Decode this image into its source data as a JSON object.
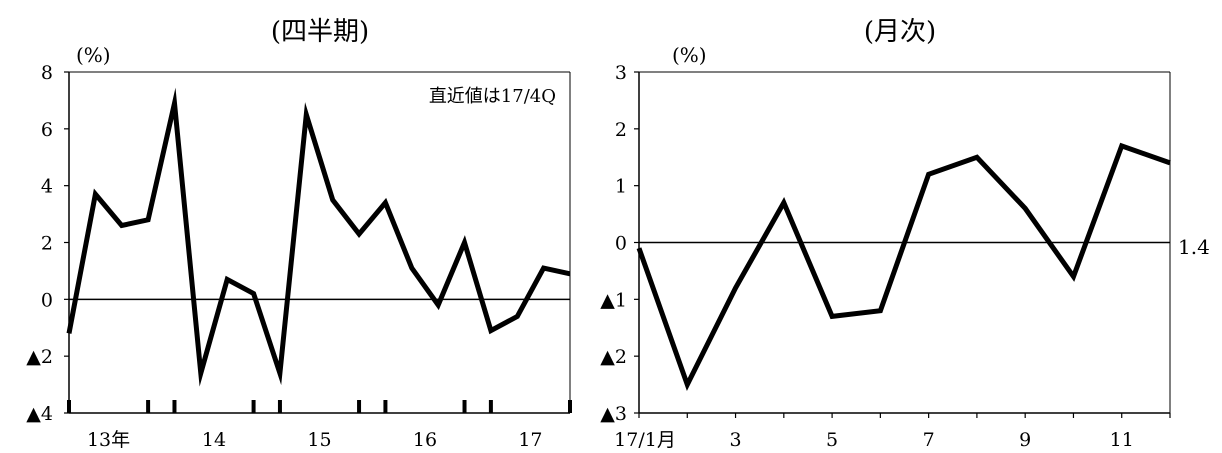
{
  "chart_data": [
    {
      "type": "line",
      "title": "(四半期)",
      "unit": "(%)",
      "annotation": "直近値は17/4Q",
      "ylim": [
        -4,
        8
      ],
      "yticks": [
        8,
        6,
        4,
        2,
        0,
        -2,
        -4
      ],
      "ytick_labels": [
        "8",
        "6",
        "4",
        "2",
        "0",
        "▲2",
        "▲4"
      ],
      "year_labels": [
        "13年",
        "14",
        "15",
        "16",
        "17"
      ],
      "series": [
        {
          "values": [
            -1.2,
            3.7,
            2.6,
            2.8,
            6.9,
            -2.6,
            0.7,
            0.2,
            -2.6,
            6.5,
            3.5,
            2.3,
            3.4,
            1.1,
            -0.2,
            2.0,
            -1.1,
            -0.6,
            1.1,
            0.9
          ]
        }
      ],
      "grid": false,
      "zero_line": true
    },
    {
      "type": "line",
      "title": "(月次)",
      "unit": "(%)",
      "ylim": [
        -3,
        3
      ],
      "yticks": [
        3,
        2,
        1,
        0,
        -1,
        -2,
        -3
      ],
      "ytick_labels": [
        "3",
        "2",
        "1",
        "0",
        "▲1",
        "▲2",
        "▲3"
      ],
      "x_labels": [
        "17/1月",
        "3",
        "5",
        "7",
        "9",
        "11"
      ],
      "series": [
        {
          "values": [
            -0.1,
            -2.5,
            -0.8,
            0.7,
            -1.3,
            -1.2,
            1.2,
            1.5,
            0.6,
            -0.6,
            1.7,
            1.4
          ]
        }
      ],
      "end_label": "1.4",
      "grid": false,
      "zero_line": true
    }
  ]
}
